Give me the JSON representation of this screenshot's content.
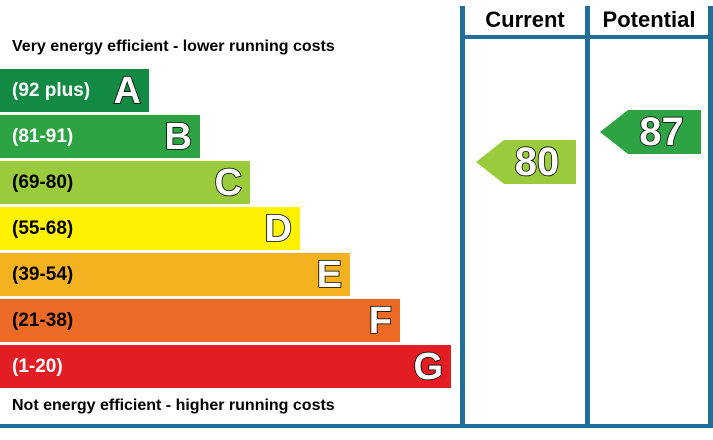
{
  "captions": {
    "top": "Very energy efficient - lower running costs",
    "bottom": "Not energy efficient - higher running costs"
  },
  "columns": {
    "current": "Current",
    "potential": "Potential"
  },
  "bands": [
    {
      "range": "(92 plus)",
      "letter": "A",
      "color": "#138a44"
    },
    {
      "range": "(81-91)",
      "letter": "B",
      "color": "#2ea343"
    },
    {
      "range": "(69-80)",
      "letter": "C",
      "color": "#9acb3c"
    },
    {
      "range": "(55-68)",
      "letter": "D",
      "color": "#fff200"
    },
    {
      "range": "(39-54)",
      "letter": "E",
      "color": "#f4b120"
    },
    {
      "range": "(21-38)",
      "letter": "F",
      "color": "#ec6a26"
    },
    {
      "range": "(1-20)",
      "letter": "G",
      "color": "#e31d24"
    }
  ],
  "ratings": {
    "current": {
      "value": "80",
      "band": "C",
      "color": "#9acb3c"
    },
    "potential": {
      "value": "87",
      "band": "B",
      "color": "#2ea343"
    }
  }
}
